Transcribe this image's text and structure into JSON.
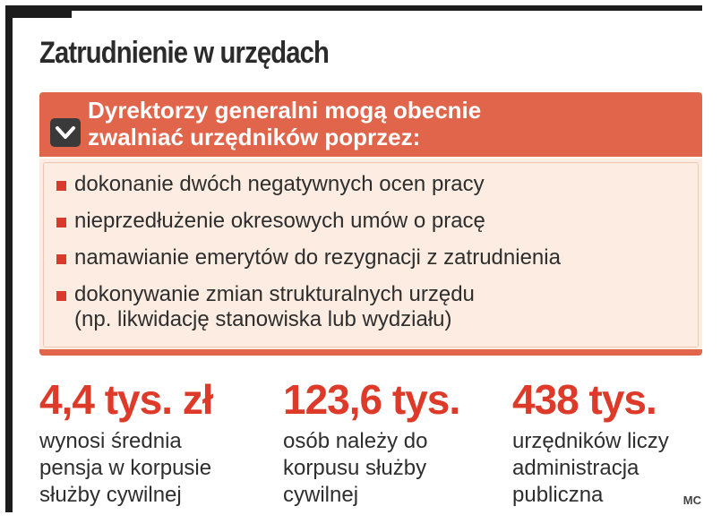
{
  "title": "Zatrudnienie w urzędach",
  "header": {
    "lines": [
      "Dyrektorzy generalni mogą obecnie",
      "zwalniać urzędników poprzez:"
    ],
    "icon": "chevron-down-icon"
  },
  "items": [
    {
      "lines": [
        "dokonanie dwóch negatywnych ocen pracy"
      ]
    },
    {
      "lines": [
        "nieprzedłużenie okresowych umów o pracę"
      ]
    },
    {
      "lines": [
        "namawianie emerytów do rezygnacji z zatrudnienia"
      ]
    },
    {
      "lines": [
        "dokonywanie zmian strukturalnych urzędu",
        "(np. likwidację stanowiska lub wydziału)"
      ]
    }
  ],
  "stats": [
    {
      "value": "4,4 tys. zł",
      "desc": [
        "wynosi średnia",
        "pensja w korpusie",
        "służby cywilnej"
      ]
    },
    {
      "value": "123,6 tys.",
      "desc": [
        "osób należy do",
        "korpusu służby",
        "cywilnej"
      ]
    },
    {
      "value": "438 tys.",
      "desc": [
        "urzędników liczy",
        "administracja",
        "publiczna"
      ]
    }
  ],
  "credit": "MC",
  "colors": {
    "accent": "#e0654a",
    "highlight": "#de3a2a",
    "panel": "#fcece1",
    "frame": "#1c1c1c"
  }
}
